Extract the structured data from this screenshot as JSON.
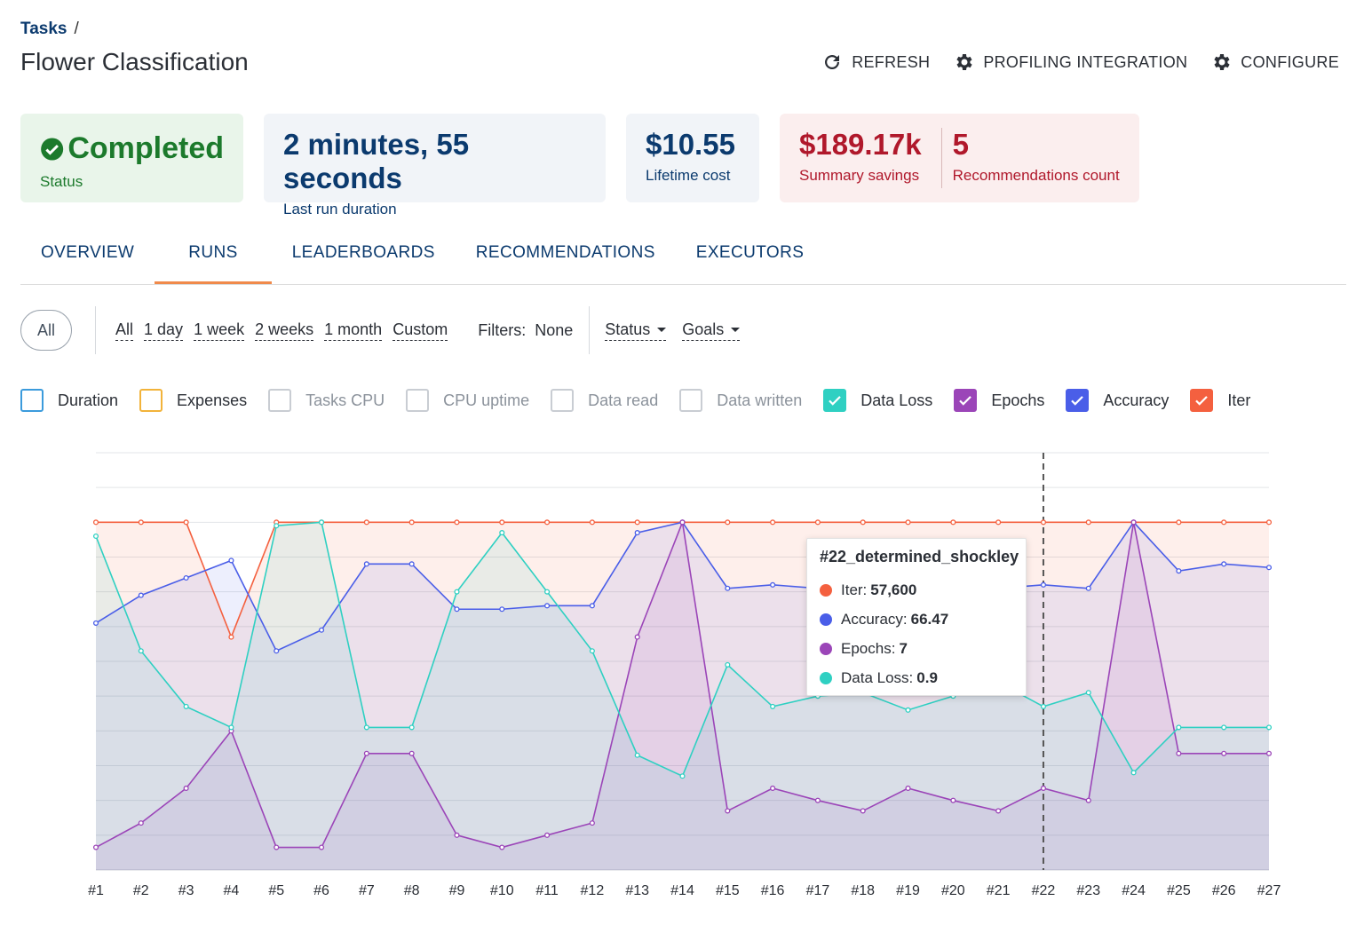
{
  "breadcrumb": {
    "root": "Tasks",
    "sep": "/"
  },
  "page_title": "Flower Classification",
  "actions": [
    {
      "label": "REFRESH",
      "icon": "refresh-icon"
    },
    {
      "label": "PROFILING INTEGRATION",
      "icon": "gear-icon"
    },
    {
      "label": "CONFIGURE",
      "icon": "gear-icon"
    }
  ],
  "cards": {
    "status": {
      "value": "Completed",
      "label": "Status",
      "icon": "check-circle-icon"
    },
    "duration": {
      "value": "2 minutes, 55 seconds",
      "label": "Last run duration"
    },
    "cost": {
      "value": "$10.55",
      "label": "Lifetime cost"
    },
    "savings": {
      "value": "$189.17k",
      "label": "Summary savings"
    },
    "recommendations": {
      "value": "5",
      "label": "Recommendations count"
    }
  },
  "tabs": [
    "OVERVIEW",
    "RUNS",
    "LEADERBOARDS",
    "RECOMMENDATIONS",
    "EXECUTORS"
  ],
  "active_tab": "RUNS",
  "filters": {
    "pill": "All",
    "ranges": [
      "All",
      "1 day",
      "1 week",
      "2 weeks",
      "1 month",
      "Custom"
    ],
    "filters_label": "Filters:",
    "filters_value": "None",
    "dropdowns": [
      "Status",
      "Goals"
    ]
  },
  "legend": [
    {
      "label": "Duration",
      "checked": false,
      "color": "#3b9bdc",
      "muted": false
    },
    {
      "label": "Expenses",
      "checked": false,
      "color": "#f2b33a",
      "muted": false
    },
    {
      "label": "Tasks CPU",
      "checked": false,
      "color": "#c9cdd3",
      "muted": true
    },
    {
      "label": "CPU uptime",
      "checked": false,
      "color": "#c9cdd3",
      "muted": true
    },
    {
      "label": "Data read",
      "checked": false,
      "color": "#c9cdd3",
      "muted": true
    },
    {
      "label": "Data written",
      "checked": false,
      "color": "#c9cdd3",
      "muted": true
    },
    {
      "label": "Data Loss",
      "checked": true,
      "color": "#2fd0c2",
      "muted": false
    },
    {
      "label": "Epochs",
      "checked": true,
      "color": "#9b45b8",
      "muted": false
    },
    {
      "label": "Accuracy",
      "checked": true,
      "color": "#4a5ee8",
      "muted": false
    },
    {
      "label": "Iter",
      "checked": true,
      "color": "#f4603f",
      "muted": false
    }
  ],
  "tooltip": {
    "title": "#22_determined_shockley",
    "rows": [
      {
        "name": "Iter:",
        "value": "57,600",
        "color": "#f4603f"
      },
      {
        "name": "Accuracy:",
        "value": "66.47",
        "color": "#4a5ee8"
      },
      {
        "name": "Epochs:",
        "value": "7",
        "color": "#9b45b8"
      },
      {
        "name": "Data Loss:",
        "value": "0.9",
        "color": "#2fd0c2"
      }
    ]
  },
  "chart_data": {
    "type": "area",
    "categories": [
      "#1",
      "#2",
      "#3",
      "#4",
      "#5",
      "#6",
      "#7",
      "#8",
      "#9",
      "#10",
      "#11",
      "#12",
      "#13",
      "#14",
      "#15",
      "#16",
      "#17",
      "#18",
      "#19",
      "#20",
      "#21",
      "#22",
      "#23",
      "#24",
      "#25",
      "#26",
      "#27"
    ],
    "hover_index": 21,
    "ylim": [
      0,
      12
    ],
    "series": [
      {
        "name": "Iter",
        "color": "#f4603f",
        "values": [
          10,
          10,
          10,
          6.7,
          10,
          10,
          10,
          10,
          10,
          10,
          10,
          10,
          10,
          10,
          10,
          10,
          10,
          10,
          10,
          10,
          10,
          10,
          10,
          10,
          10,
          10,
          10
        ]
      },
      {
        "name": "Accuracy",
        "color": "#4a5ee8",
        "values": [
          7.1,
          7.9,
          8.4,
          8.9,
          6.3,
          6.9,
          8.8,
          8.8,
          7.5,
          7.5,
          7.6,
          7.6,
          9.7,
          10,
          8.1,
          8.2,
          8.1,
          8.1,
          8.1,
          8.1,
          8.1,
          8.2,
          8.1,
          10,
          8.6,
          8.8,
          8.7
        ]
      },
      {
        "name": "Epochs",
        "color": "#9b45b8",
        "values": [
          0.65,
          1.35,
          2.35,
          4,
          0.65,
          0.65,
          3.35,
          3.35,
          1,
          0.65,
          1,
          1.35,
          6.7,
          10,
          1.7,
          2.35,
          2,
          1.7,
          2.35,
          2,
          1.7,
          2.35,
          2,
          10,
          3.35,
          3.35,
          3.35
        ]
      },
      {
        "name": "Data Loss",
        "color": "#2fd0c2",
        "values": [
          9.6,
          6.3,
          4.7,
          4.1,
          9.9,
          10,
          4.1,
          4.1,
          8,
          9.7,
          8,
          6.3,
          3.3,
          2.7,
          5.9,
          4.7,
          5,
          5.1,
          4.6,
          5,
          5.4,
          4.7,
          5.1,
          2.8,
          4.1,
          4.1,
          4.1
        ]
      }
    ]
  }
}
